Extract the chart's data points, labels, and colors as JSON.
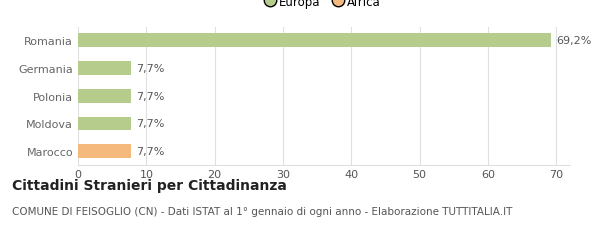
{
  "categories": [
    "Marocco",
    "Moldova",
    "Polonia",
    "Germania",
    "Romania"
  ],
  "values": [
    7.7,
    7.7,
    7.7,
    7.7,
    69.2
  ],
  "labels": [
    "7,7%",
    "7,7%",
    "7,7%",
    "7,7%",
    "69,2%"
  ],
  "bar_colors": [
    "#f5b97d",
    "#b5cc8c",
    "#b5cc8c",
    "#b5cc8c",
    "#b5cc8c"
  ],
  "legend_items": [
    {
      "label": "Europa",
      "color": "#b5cc8c"
    },
    {
      "label": "Africa",
      "color": "#f5b97d"
    }
  ],
  "xlim": [
    0,
    72
  ],
  "xticks": [
    0,
    10,
    20,
    30,
    40,
    50,
    60,
    70
  ],
  "title": "Cittadini Stranieri per Cittadinanza",
  "subtitle": "COMUNE DI FEISOGLIO (CN) - Dati ISTAT al 1° gennaio di ogni anno - Elaborazione TUTTITALIA.IT",
  "title_fontsize": 10,
  "subtitle_fontsize": 7.5,
  "label_fontsize": 8,
  "tick_fontsize": 8,
  "legend_fontsize": 8.5,
  "background_color": "#ffffff",
  "bar_height": 0.5,
  "grid_color": "#e0e0e0",
  "text_color": "#555555",
  "yticklabel_color": "#666666"
}
